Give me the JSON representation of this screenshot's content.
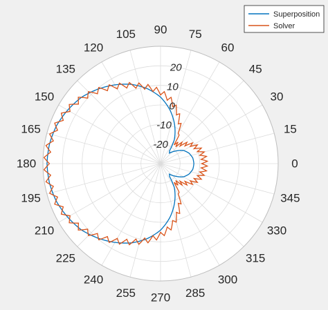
{
  "chart_data": {
    "type": "polar-line",
    "title": "",
    "theta_unit": "degrees",
    "theta_ticks": [
      0,
      15,
      30,
      45,
      60,
      75,
      90,
      105,
      120,
      135,
      150,
      165,
      180,
      195,
      210,
      225,
      240,
      255,
      270,
      285,
      300,
      315,
      330,
      345
    ],
    "r_ticks": [
      -20,
      -10,
      0,
      10,
      20
    ],
    "r_lim": [
      -30,
      30
    ],
    "grid": true,
    "legend": "top-right",
    "series": [
      {
        "name": "Superposition",
        "color": "#0072BD",
        "theta": [
          0,
          10,
          20,
          30,
          40,
          50,
          55,
          60,
          70,
          80,
          90,
          100,
          110,
          120,
          130,
          140,
          150,
          160,
          170,
          180,
          190,
          200,
          210,
          220,
          230,
          240,
          250,
          260,
          270,
          280,
          290,
          300,
          305,
          310,
          320,
          330,
          340,
          350,
          360
        ],
        "r": [
          -13,
          -13.3,
          -14.5,
          -16.5,
          -20,
          -23,
          -22,
          -16,
          -9,
          -2.2,
          4,
          8.9,
          13.1,
          16.5,
          19.7,
          22.7,
          24.7,
          26.5,
          27.5,
          27.9,
          27.5,
          26.5,
          24.7,
          22.7,
          19.7,
          16.5,
          13.1,
          8.9,
          4,
          -2.2,
          -9,
          -16,
          -22,
          -23,
          -20,
          -16.5,
          -14.5,
          -13.3,
          -13
        ]
      },
      {
        "name": "Solver",
        "color": "#D95319",
        "theta": [
          0,
          10,
          20,
          30,
          40,
          50,
          55,
          60,
          70,
          80,
          90,
          100,
          110,
          120,
          130,
          140,
          150,
          160,
          170,
          180,
          190,
          200,
          210,
          220,
          230,
          240,
          250,
          260,
          270,
          280,
          290,
          300,
          305,
          310,
          320,
          330,
          340,
          350,
          360
        ],
        "r": [
          -7.5,
          -7.8,
          -9,
          -11,
          -14.5,
          -17.5,
          -16.5,
          -10.5,
          -3.5,
          2.4,
          6.6,
          9.8,
          12.6,
          15.6,
          18.9,
          22.2,
          24.8,
          26.5,
          27.6,
          28.2,
          27.6,
          26.5,
          24.8,
          22.2,
          18.9,
          15.6,
          12.6,
          9.8,
          6.6,
          2.4,
          -3.5,
          -10.5,
          -16.5,
          -17.5,
          -14.5,
          -11,
          -9,
          -7.8,
          -7.5
        ],
        "ripple_amplitude": 1.5,
        "ripple_period_deg": 6
      }
    ]
  }
}
